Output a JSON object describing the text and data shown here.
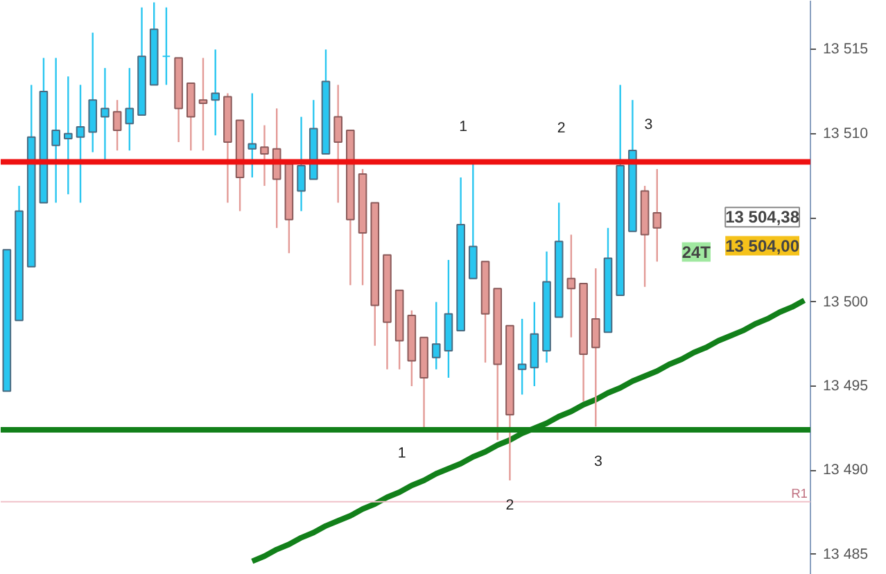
{
  "chart_data": {
    "type": "candlestick",
    "categories": [
      null,
      null,
      null,
      null,
      null,
      null,
      null,
      null,
      null,
      null,
      null,
      null,
      null,
      null,
      null,
      null,
      null,
      null,
      null,
      null,
      null,
      null,
      null,
      null,
      null,
      null,
      null,
      null,
      null,
      null,
      null,
      null,
      null,
      null,
      null,
      null,
      null,
      null,
      null,
      null,
      null,
      null,
      null,
      null,
      null,
      null,
      null,
      null,
      null,
      null,
      null,
      null,
      null,
      null,
      null,
      null,
      null,
      null,
      null,
      null,
      null,
      null,
      null,
      null,
      null,
      null
    ],
    "ohlc": [
      [
        13494.7,
        13503.1,
        13494.7,
        13503.1
      ],
      [
        13498.9,
        13506.9,
        13498.9,
        13505.4
      ],
      [
        13502.1,
        13512.9,
        13502.1,
        13509.8
      ],
      [
        13505.9,
        13514.5,
        13505.9,
        13512.5
      ],
      [
        13509.3,
        13514.5,
        13505.9,
        13510.2
      ],
      [
        13509.7,
        13513.4,
        13506.4,
        13510.0
      ],
      [
        13509.8,
        13512.9,
        13505.9,
        13510.4
      ],
      [
        13510.1,
        13516.0,
        13508.9,
        13512.0
      ],
      [
        13511.0,
        13513.9,
        13508.4,
        13511.5
      ],
      [
        13511.3,
        13512.0,
        13509.0,
        13510.2
      ],
      [
        13510.6,
        13513.9,
        13509.0,
        13511.5
      ],
      [
        13511.1,
        13517.5,
        13511.1,
        13514.6
      ],
      [
        13512.9,
        13517.8,
        13512.9,
        13516.2
      ],
      [
        13514.6,
        13517.5,
        13512.9,
        13514.6
      ],
      [
        13514.5,
        13514.5,
        13509.5,
        13511.5
      ],
      [
        13513.0,
        13513.0,
        13509.0,
        13511.0
      ],
      [
        13512.0,
        13514.5,
        13509.0,
        13511.8
      ],
      [
        13512.0,
        13515.0,
        13509.9,
        13512.4
      ],
      [
        13512.2,
        13512.4,
        13505.9,
        13509.5
      ],
      [
        13510.8,
        13510.8,
        13505.4,
        13507.4
      ],
      [
        13509.1,
        13512.4,
        13507.4,
        13509.4
      ],
      [
        13509.2,
        13510.5,
        13506.9,
        13508.8
      ],
      [
        13509.1,
        13511.5,
        13504.4,
        13507.3
      ],
      [
        13508.2,
        13508.2,
        13502.9,
        13504.9
      ],
      [
        13506.6,
        13511.0,
        13505.4,
        13508.1
      ],
      [
        13507.3,
        13512.0,
        13507.3,
        13510.3
      ],
      [
        13508.8,
        13515.0,
        13508.8,
        13513.1
      ],
      [
        13511.0,
        13512.9,
        13505.9,
        13509.5
      ],
      [
        13510.2,
        13510.2,
        13501.0,
        13504.9
      ],
      [
        13507.6,
        13507.9,
        13501.0,
        13504.1
      ],
      [
        13505.9,
        13505.9,
        13497.4,
        13499.8
      ],
      [
        13502.8,
        13502.8,
        13496.0,
        13498.8
      ],
      [
        13500.7,
        13500.7,
        13496.0,
        13497.7
      ],
      [
        13499.2,
        13499.5,
        13495.0,
        13496.5
      ],
      [
        13497.9,
        13497.9,
        13492.5,
        13495.5
      ],
      [
        13496.7,
        13500.0,
        13496.0,
        13497.5
      ],
      [
        13497.1,
        13502.5,
        13495.5,
        13499.3
      ],
      [
        13498.3,
        13507.4,
        13498.3,
        13504.6
      ],
      [
        13501.4,
        13508.3,
        13501.4,
        13503.3
      ],
      [
        13502.4,
        13502.4,
        13496.4,
        13499.3
      ],
      [
        13500.8,
        13500.8,
        13491.8,
        13496.3
      ],
      [
        13498.6,
        13498.6,
        13489.4,
        13493.3
      ],
      [
        13496.0,
        13499.0,
        13494.5,
        13496.3
      ],
      [
        13496.1,
        13500.0,
        13495.0,
        13498.1
      ],
      [
        13497.1,
        13503.0,
        13496.4,
        13501.2
      ],
      [
        13499.1,
        13505.9,
        13499.1,
        13503.6
      ],
      [
        13501.4,
        13504.0,
        13497.9,
        13500.8
      ],
      [
        13501.1,
        13501.1,
        13494.1,
        13496.9
      ],
      [
        13499.0,
        13502.0,
        13492.6,
        13497.3
      ],
      [
        13498.2,
        13504.4,
        13498.2,
        13502.6
      ],
      [
        13500.4,
        13512.9,
        13500.4,
        13508.1
      ],
      [
        13504.2,
        13512.0,
        13504.2,
        13509.0
      ],
      [
        13506.6,
        13506.9,
        13500.9,
        13504.0
      ],
      [
        13505.3,
        13507.9,
        13502.4,
        13504.4
      ],
      null,
      null,
      null,
      null,
      null,
      null,
      null,
      null,
      null,
      null,
      null,
      null
    ],
    "colors": [
      "#29c6f0",
      "#29c6f0",
      "#29c6f0",
      "#29c6f0",
      "#29c6f0",
      "#29c6f0",
      "#29c6f0",
      "#29c6f0",
      "#29c6f0",
      "#e39a96",
      "#29c6f0",
      "#29c6f0",
      "#29c6f0",
      "#29c6f0",
      "#e39a96",
      "#e39a96",
      "#e39a96",
      "#29c6f0",
      "#e39a96",
      "#e39a96",
      "#29c6f0",
      "#e39a96",
      "#e39a96",
      "#e39a96",
      "#29c6f0",
      "#29c6f0",
      "#29c6f0",
      "#e39a96",
      "#e39a96",
      "#e39a96",
      "#e39a96",
      "#e39a96",
      "#e39a96",
      "#e39a96",
      "#e39a96",
      "#29c6f0",
      "#29c6f0",
      "#29c6f0",
      "#29c6f0",
      "#e39a96",
      "#e39a96",
      "#e39a96",
      "#29c6f0",
      "#29c6f0",
      "#29c6f0",
      "#29c6f0",
      "#e39a96",
      "#e39a96",
      "#e39a96",
      "#29c6f0",
      "#29c6f0",
      "#29c6f0",
      "#e39a96",
      "#e39a96",
      null,
      null,
      null,
      null,
      null,
      null,
      null,
      null,
      null,
      null,
      null,
      null
    ],
    "series": [
      {
        "type": "line",
        "color": "#12801a",
        "values": [
          null,
          null,
          null,
          null,
          null,
          null,
          null,
          null,
          null,
          null,
          null,
          null,
          null,
          null,
          null,
          null,
          null,
          null,
          null,
          null,
          13484.6,
          13484.9,
          13485.3,
          13485.6,
          13486.0,
          13486.3,
          13486.7,
          13487.0,
          13487.3,
          13487.7,
          13488.0,
          13488.4,
          13488.7,
          13489.1,
          13489.4,
          13489.8,
          13490.1,
          13490.4,
          13490.8,
          13491.1,
          13491.5,
          13491.8,
          13492.2,
          13492.5,
          13492.8,
          13493.2,
          13493.5,
          13493.9,
          13494.2,
          13494.6,
          13494.9,
          13495.3,
          13495.6,
          13495.9,
          13496.3,
          13496.6,
          13497.0,
          13497.3,
          13497.7,
          13498.0,
          13498.3,
          13498.7,
          13499.0,
          13499.4,
          13499.7,
          13500.1
        ]
      }
    ],
    "ref_lines": [
      {
        "axis": "y",
        "value": 13508.32,
        "color": "#ee1111"
      },
      {
        "axis": "y",
        "value": 13492.41,
        "color": "#12801a"
      },
      {
        "axis": "y",
        "value": 13488.13,
        "color": "#f0c0c8",
        "label": "R1"
      }
    ],
    "annotations": [
      "1",
      "2",
      "3",
      "1",
      "2",
      "3",
      "13 504,38",
      "24T",
      "13 504,00"
    ],
    "ylim": [
      13483.8,
      13517.9
    ],
    "yticks": [
      {
        "value": 13485,
        "label": "13 485"
      },
      {
        "value": 13490,
        "label": "13 490"
      },
      {
        "value": 13495,
        "label": "13 495"
      },
      {
        "value": 13500,
        "label": "13 500"
      },
      {
        "value": 13505,
        "label": null
      },
      {
        "value": 13510,
        "label": "13 510"
      },
      {
        "value": 13515,
        "label": "13 515"
      }
    ],
    "tick_labels": "y"
  }
}
